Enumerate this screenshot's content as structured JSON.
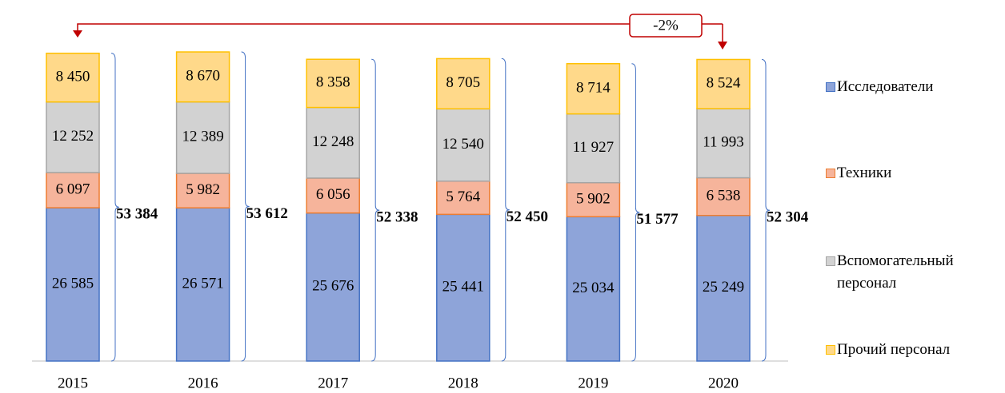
{
  "chart_data": {
    "type": "stacked_bar",
    "categories": [
      "2015",
      "2016",
      "2017",
      "2018",
      "2019",
      "2020"
    ],
    "series": [
      {
        "name": "Исследователи",
        "color": "#8ea4d9",
        "edgecolor": "#4472c4",
        "values": [
          26585,
          26571,
          25676,
          25441,
          25034,
          25249
        ],
        "value_labels": [
          "26 585",
          "26 571",
          "25 676",
          "25 441",
          "25 034",
          "25 249"
        ]
      },
      {
        "name": "Техники",
        "color": "#f6b49b",
        "edgecolor": "#ed7d31",
        "values": [
          6097,
          5982,
          6056,
          5764,
          5902,
          6538
        ],
        "value_labels": [
          "6 097",
          "5 982",
          "6 056",
          "5 764",
          "5 902",
          "6 538"
        ]
      },
      {
        "name": "Вспомогательный персонал",
        "color": "#d2d2d2",
        "edgecolor": "#a5a5a5",
        "values": [
          12252,
          12389,
          12248,
          12540,
          11927,
          11993
        ],
        "value_labels": [
          "12 252",
          "12 389",
          "12 248",
          "12 540",
          "11 927",
          "11 993"
        ]
      },
      {
        "name": "Прочий персонал",
        "color": "#ffd98a",
        "edgecolor": "#ffc000",
        "values": [
          8450,
          8670,
          8358,
          8705,
          8714,
          8524
        ],
        "value_labels": [
          "8 450",
          "8 670",
          "8 358",
          "8 705",
          "8 714",
          "8 524"
        ]
      }
    ],
    "totals": [
      53384,
      53612,
      52338,
      52450,
      51577,
      52304
    ],
    "totals_labels": [
      "53 384",
      "53 612",
      "52 338",
      "52 450",
      "51 577",
      "52 304"
    ],
    "annotation": "-2%",
    "ylim": [
      0,
      55000
    ],
    "legend": "right"
  }
}
